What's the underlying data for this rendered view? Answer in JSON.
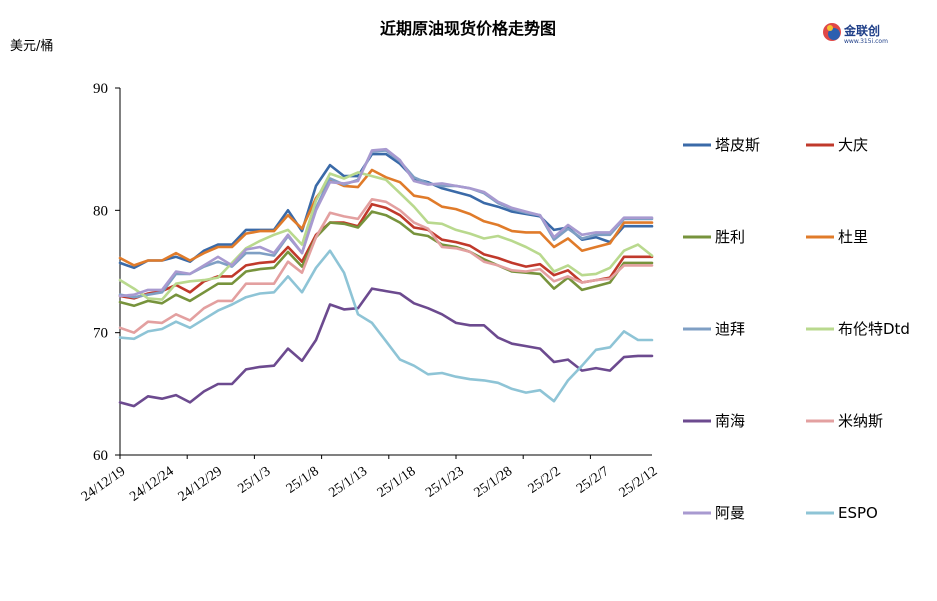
{
  "chart_data": {
    "type": "line",
    "title": "近期原油现货价格走势图",
    "ylabel": "美元/桶",
    "ylim": [
      60,
      90
    ],
    "yticks": [
      60,
      70,
      80,
      90
    ],
    "xlabels": [
      "24/12/19",
      "24/12/24",
      "24/12/29",
      "25/1/3",
      "25/1/8",
      "25/1/13",
      "25/1/18",
      "25/1/23",
      "25/1/28",
      "25/2/2",
      "25/2/7",
      "25/2/12"
    ],
    "grid": false,
    "legend": "right",
    "x": [
      "24/12/19",
      "24/12/20",
      "24/12/23",
      "24/12/24",
      "24/12/26",
      "24/12/27",
      "24/12/30",
      "24/12/31",
      "25/1/2",
      "25/1/3",
      "25/1/6",
      "25/1/7",
      "25/1/8",
      "25/1/9",
      "25/1/10",
      "25/1/13",
      "25/1/14",
      "25/1/15",
      "25/1/16",
      "25/1/17",
      "25/1/20",
      "25/1/21",
      "25/1/22",
      "25/1/23",
      "25/1/24",
      "25/1/27",
      "25/1/28",
      "25/1/29",
      "25/1/30",
      "25/1/31",
      "25/2/3",
      "25/2/4",
      "25/2/5",
      "25/2/6",
      "25/2/7",
      "25/2/10",
      "25/2/11",
      "25/2/12",
      "25/2/13"
    ],
    "series": [
      {
        "name": "塔皮斯",
        "color": "#3a6aa8",
        "values": [
          75.7,
          75.3,
          75.9,
          75.9,
          76.2,
          75.8,
          76.7,
          77.2,
          77.2,
          78.4,
          78.4,
          78.4,
          80.0,
          78.3,
          82.0,
          83.7,
          82.8,
          82.8,
          84.6,
          84.6,
          83.8,
          82.6,
          82.3,
          81.8,
          81.5,
          81.2,
          80.6,
          80.3,
          79.9,
          79.7,
          79.5,
          78.4,
          78.6,
          77.6,
          77.8,
          77.4,
          78.7,
          78.7,
          78.7
        ]
      },
      {
        "name": "大庆",
        "color": "#c0392b",
        "values": [
          73.0,
          72.8,
          73.2,
          73.4,
          73.9,
          73.3,
          74.2,
          74.6,
          74.6,
          75.5,
          75.7,
          75.8,
          77.0,
          75.8,
          78.0,
          79.0,
          79.0,
          78.7,
          80.5,
          80.2,
          79.6,
          78.6,
          78.4,
          77.6,
          77.4,
          77.1,
          76.4,
          76.1,
          75.7,
          75.4,
          75.6,
          74.7,
          75.1,
          74.1,
          74.3,
          74.5,
          76.2,
          76.2,
          76.2
        ]
      },
      {
        "name": "胜利",
        "color": "#77933c",
        "values": [
          72.5,
          72.2,
          72.6,
          72.4,
          73.1,
          72.6,
          73.3,
          74.0,
          74.0,
          75.0,
          75.2,
          75.3,
          76.6,
          75.4,
          77.8,
          79.0,
          78.9,
          78.6,
          79.9,
          79.6,
          79.0,
          78.1,
          77.9,
          77.2,
          77.0,
          76.6,
          76.0,
          75.5,
          75.0,
          74.9,
          74.8,
          73.6,
          74.5,
          73.5,
          73.8,
          74.1,
          75.7,
          75.7,
          75.7
        ]
      },
      {
        "name": "杜里",
        "color": "#e07b2a",
        "values": [
          76.1,
          75.5,
          75.9,
          75.9,
          76.5,
          75.9,
          76.5,
          77.0,
          77.0,
          78.1,
          78.3,
          78.3,
          79.6,
          78.5,
          81.0,
          82.5,
          82.0,
          81.9,
          83.3,
          82.7,
          82.3,
          81.2,
          81.0,
          80.3,
          80.1,
          79.7,
          79.1,
          78.8,
          78.3,
          78.2,
          78.2,
          77.0,
          77.7,
          76.7,
          77.0,
          77.3,
          79.0,
          79.0,
          79.0
        ]
      },
      {
        "name": "迪拜",
        "color": "#7f9fc4",
        "values": [
          73.1,
          72.9,
          73.1,
          73.3,
          74.8,
          74.8,
          75.4,
          75.8,
          75.4,
          76.5,
          76.5,
          76.3,
          77.9,
          76.5,
          80.2,
          82.6,
          82.1,
          82.5,
          84.8,
          84.9,
          84.0,
          82.7,
          82.2,
          82.0,
          82.0,
          81.8,
          81.4,
          80.6,
          80.1,
          79.8,
          79.6,
          77.6,
          78.5,
          77.7,
          78.0,
          78.0,
          79.3,
          79.3,
          79.3
        ]
      },
      {
        "name": "布伦特Dtd",
        "color": "#b9d98e",
        "values": [
          74.3,
          73.6,
          72.8,
          72.7,
          74.0,
          74.2,
          74.3,
          74.5,
          75.7,
          76.9,
          77.5,
          78.0,
          78.4,
          77.2,
          80.8,
          83.0,
          82.6,
          83.1,
          82.8,
          82.5,
          81.4,
          80.3,
          79.0,
          78.9,
          78.4,
          78.1,
          77.7,
          77.9,
          77.5,
          77.0,
          76.4,
          75.0,
          75.5,
          74.7,
          74.8,
          75.3,
          76.7,
          77.2,
          76.3
        ]
      },
      {
        "name": "南海",
        "color": "#6c4a8f",
        "values": [
          64.3,
          64.0,
          64.8,
          64.6,
          64.9,
          64.3,
          65.2,
          65.8,
          65.8,
          67.0,
          67.2,
          67.3,
          68.7,
          67.7,
          69.4,
          72.3,
          71.9,
          72.0,
          73.6,
          73.4,
          73.2,
          72.4,
          72.0,
          71.5,
          70.8,
          70.6,
          70.6,
          69.6,
          69.1,
          68.9,
          68.7,
          67.6,
          67.8,
          66.9,
          67.1,
          66.9,
          68.0,
          68.1,
          68.1
        ]
      },
      {
        "name": "米纳斯",
        "color": "#e3a0a0",
        "values": [
          70.4,
          70.0,
          70.9,
          70.8,
          71.5,
          71.0,
          72.0,
          72.6,
          72.6,
          74.0,
          74.0,
          74.0,
          75.8,
          74.9,
          77.8,
          79.8,
          79.5,
          79.3,
          80.9,
          80.7,
          80.0,
          79.0,
          78.5,
          77.0,
          76.9,
          76.6,
          75.8,
          75.5,
          75.1,
          75.0,
          75.2,
          74.2,
          74.6,
          74.1,
          74.3,
          74.4,
          75.5,
          75.5,
          75.5
        ]
      },
      {
        "name": "阿曼",
        "color": "#a89ad0",
        "values": [
          73.0,
          73.1,
          73.5,
          73.5,
          75.0,
          74.8,
          75.5,
          76.2,
          75.5,
          76.8,
          77.0,
          76.5,
          78.0,
          76.5,
          80.0,
          82.3,
          82.2,
          82.4,
          84.9,
          85.0,
          84.1,
          82.4,
          82.1,
          82.2,
          82.0,
          81.8,
          81.5,
          80.7,
          80.2,
          79.9,
          79.6,
          77.8,
          78.8,
          78.0,
          78.2,
          78.2,
          79.4,
          79.4,
          79.4
        ]
      },
      {
        "name": "ESPO",
        "color": "#8ec4d6",
        "values": [
          69.6,
          69.5,
          70.1,
          70.3,
          70.9,
          70.4,
          71.1,
          71.8,
          72.3,
          72.9,
          73.2,
          73.3,
          74.6,
          73.3,
          75.3,
          76.7,
          74.9,
          71.5,
          70.8,
          69.3,
          67.8,
          67.3,
          66.6,
          66.7,
          66.4,
          66.2,
          66.1,
          65.9,
          65.4,
          65.1,
          65.3,
          64.4,
          66.1,
          67.3,
          68.6,
          68.8,
          70.1,
          69.4,
          69.4
        ]
      }
    ]
  },
  "logo": {
    "name": "金联创",
    "sub": "www.315i.com"
  }
}
